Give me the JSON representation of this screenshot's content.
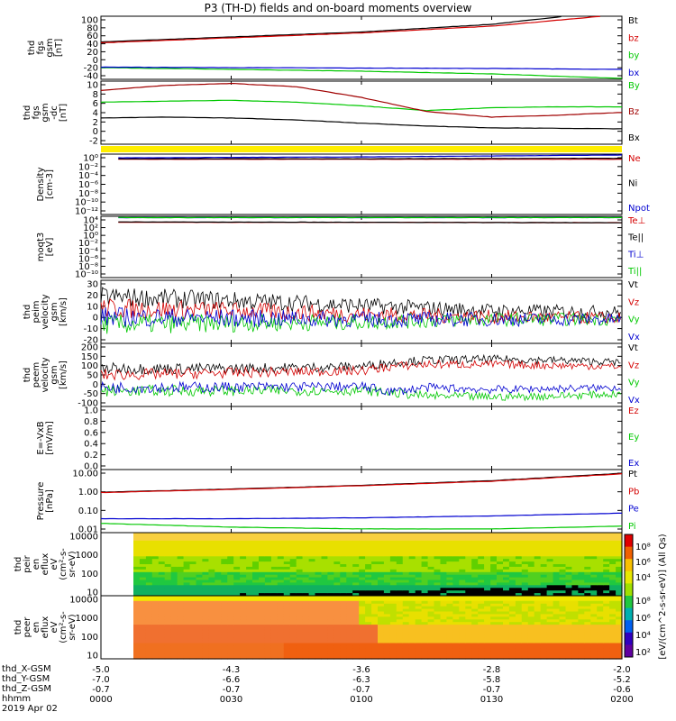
{
  "title": "P3 (TH-D) fields and on-board moments overview",
  "colors": {
    "black": "#000000",
    "red": "#d40000",
    "green": "#00c800",
    "blue": "#0000d0",
    "yellow": "#ffee00",
    "darkred": "#a00000"
  },
  "chart_data": [
    {
      "id": "fgs_gsm",
      "type": "line",
      "ylabel": [
        "thd",
        "fgs",
        "gsm",
        "[nT]"
      ],
      "yticks": [
        "100",
        "80",
        "60",
        "40",
        "20",
        "0",
        "-20",
        "-40"
      ],
      "ylim": [
        -40,
        100
      ],
      "series": [
        {
          "name": "Bt",
          "color": "#000000",
          "x": [
            0,
            30,
            60,
            90,
            118
          ],
          "y": [
            43,
            54,
            65,
            82,
            112
          ]
        },
        {
          "name": "bz",
          "color": "#d40000",
          "x": [
            0,
            30,
            60,
            90,
            120
          ],
          "y": [
            41,
            52,
            63,
            78,
            104
          ]
        },
        {
          "name": "by",
          "color": "#00c800",
          "x": [
            0,
            30,
            60,
            90,
            120
          ],
          "y": [
            -14,
            -18,
            -22,
            -28,
            -38
          ]
        },
        {
          "name": "bx",
          "color": "#0000d0",
          "x": [
            0,
            30,
            60,
            90,
            120
          ],
          "y": [
            -13,
            -14,
            -15,
            -16,
            -18
          ]
        }
      ]
    },
    {
      "id": "fgs_gsm_dc",
      "type": "line",
      "ylabel": [
        "thd",
        "fgs",
        "gsm",
        "-dc",
        "[nT]"
      ],
      "yticks": [
        "10",
        "8",
        "6",
        "4",
        "2",
        "0",
        "-2"
      ],
      "ylim": [
        -3,
        10.5
      ],
      "series": [
        {
          "name": "By",
          "color": "#00c800",
          "x": [
            0,
            15,
            30,
            45,
            60,
            75,
            90,
            105,
            120
          ],
          "y": [
            6,
            6.2,
            6.4,
            6,
            5.2,
            4.2,
            4.8,
            5,
            5
          ]
        },
        {
          "name": "Bz",
          "color": "#a00000",
          "x": [
            0,
            15,
            30,
            45,
            60,
            75,
            90,
            105,
            120
          ],
          "y": [
            8.5,
            9.6,
            10,
            9.3,
            7,
            4,
            2.8,
            3.2,
            3.8
          ]
        },
        {
          "name": "Bx",
          "color": "#000000",
          "x": [
            0,
            15,
            30,
            45,
            60,
            75,
            90,
            105,
            120
          ],
          "y": [
            2.6,
            2.8,
            2.6,
            2.2,
            1.5,
            0.9,
            0.5,
            0.4,
            0.3
          ]
        }
      ]
    },
    {
      "id": "density",
      "type": "line",
      "log": true,
      "ylabel": [
        "Density",
        "[cm-3]"
      ],
      "yticks": [
        "10⁰",
        "10⁻²",
        "10⁻⁴",
        "10⁻⁶",
        "10⁻⁸",
        "10⁻¹⁰",
        "10⁻¹²"
      ],
      "ylim": [
        -12,
        1
      ],
      "series": [
        {
          "name": "Ne",
          "color": "#d40000",
          "x": [
            4,
            60,
            120
          ],
          "y": [
            -0.1,
            -0.1,
            -0.1
          ]
        },
        {
          "name": "Ni",
          "color": "#000000",
          "x": [
            4,
            60,
            120
          ],
          "y": [
            0,
            0,
            0.1
          ]
        },
        {
          "name": "Npot",
          "color": "#0000d0",
          "x": [
            4,
            60,
            120
          ],
          "y": [
            0.2,
            0.4,
            0.8
          ]
        }
      ]
    },
    {
      "id": "moqt",
      "type": "line",
      "log": true,
      "ylabel": [
        "moqt3",
        "[eV]"
      ],
      "yticks": [
        "10⁴",
        "10²",
        "10⁰",
        "10⁻²",
        "10⁻⁴",
        "10⁻⁶",
        "10⁻⁸",
        "10⁻¹⁰"
      ],
      "ylim": [
        -10,
        4.3
      ],
      "series": [
        {
          "name": "Te⊥",
          "color": "#d40000",
          "x": [
            4,
            60,
            120
          ],
          "y": [
            2.9,
            2.9,
            2.8
          ]
        },
        {
          "name": "Te||",
          "color": "#000000",
          "x": [
            4,
            60,
            120
          ],
          "y": [
            3,
            2.9,
            2.8
          ]
        },
        {
          "name": "Ti⊥",
          "color": "#0000d0",
          "x": [
            4,
            60,
            120
          ],
          "y": [
            4,
            4,
            4
          ]
        },
        {
          "name": "Ti||",
          "color": "#00c800",
          "x": [
            4,
            60,
            120
          ],
          "y": [
            4,
            4,
            4
          ]
        }
      ]
    },
    {
      "id": "peim_velocity",
      "type": "line",
      "ylabel": [
        "thd",
        "peim",
        "velocity",
        "gsm",
        "[km/s]"
      ],
      "yticks": [
        "30",
        "20",
        "10",
        "0",
        "-10",
        "-20"
      ],
      "ylim": [
        -20,
        30
      ],
      "series": [
        {
          "name": "Vt",
          "color": "#000000",
          "x": [
            0,
            30,
            60,
            90,
            120
          ],
          "y": [
            17,
            14,
            10,
            6,
            5
          ]
        },
        {
          "name": "Vz",
          "color": "#d40000",
          "x": [
            0,
            30,
            60,
            90,
            120
          ],
          "y": [
            8,
            6,
            3,
            1,
            0
          ]
        },
        {
          "name": "Vy",
          "color": "#00c800",
          "x": [
            0,
            30,
            60,
            90,
            120
          ],
          "y": [
            -5,
            -4,
            -3,
            -1,
            -1
          ]
        },
        {
          "name": "Vx",
          "color": "#0000d0",
          "x": [
            0,
            30,
            60,
            90,
            120
          ],
          "y": [
            1,
            0,
            -1,
            -1,
            -1
          ]
        }
      ]
    },
    {
      "id": "peem_velocity",
      "type": "line",
      "ylabel": [
        "thd",
        "peem",
        "velocity",
        "gsm",
        "[km/s]"
      ],
      "yticks": [
        "200",
        "150",
        "100",
        "50",
        "0",
        "-50",
        "-100"
      ],
      "ylim": [
        -100,
        200
      ],
      "series": [
        {
          "name": "Vt",
          "color": "#000000",
          "x": [
            0,
            30,
            60,
            67,
            75,
            90,
            105,
            120
          ],
          "y": [
            80,
            80,
            90,
            110,
            120,
            125,
            120,
            110
          ]
        },
        {
          "name": "Vz",
          "color": "#d40000",
          "x": [
            0,
            30,
            60,
            67,
            75,
            90,
            105,
            120
          ],
          "y": [
            50,
            60,
            70,
            90,
            100,
            100,
            95,
            90
          ]
        },
        {
          "name": "Vy",
          "color": "#00c800",
          "x": [
            0,
            30,
            60,
            67,
            75,
            90,
            105,
            120
          ],
          "y": [
            -25,
            -25,
            -25,
            -35,
            -50,
            -55,
            -50,
            -40
          ]
        },
        {
          "name": "Vx",
          "color": "#0000d0",
          "x": [
            0,
            30,
            60,
            67,
            75,
            90,
            105,
            120
          ],
          "y": [
            -10,
            -8,
            -5,
            -30,
            -10,
            -20,
            -15,
            -10
          ]
        }
      ]
    },
    {
      "id": "efield",
      "type": "line",
      "ylabel": [
        "E=-VxB",
        "[mV/m]"
      ],
      "yticks": [
        "1.0",
        "0.8",
        "0.6",
        "0.4",
        "0.2",
        "0.0"
      ],
      "ylim": [
        0,
        1
      ],
      "series": [
        {
          "name": "Ez",
          "color": "#d40000",
          "x": [],
          "y": []
        },
        {
          "name": "Ey",
          "color": "#00c800",
          "x": [],
          "y": []
        },
        {
          "name": "Ex",
          "color": "#0000d0",
          "x": [],
          "y": []
        }
      ]
    },
    {
      "id": "pressure",
      "type": "line",
      "log": true,
      "ylabel": [
        "Pressure",
        "[nPa]"
      ],
      "yticks": [
        "10.00",
        "1.00",
        "0.10",
        "0.01"
      ],
      "ylim": [
        -2.25,
        1.15
      ],
      "series": [
        {
          "name": "Pt",
          "color": "#000000",
          "x": [
            0,
            30,
            60,
            90,
            120
          ],
          "y": [
            -0.07,
            0.1,
            0.3,
            0.55,
            0.95
          ]
        },
        {
          "name": "Pb",
          "color": "#d40000",
          "x": [
            0,
            30,
            60,
            90,
            120
          ],
          "y": [
            -0.09,
            0.08,
            0.28,
            0.52,
            0.92
          ]
        },
        {
          "name": "Pe",
          "color": "#0000d0",
          "x": [
            0,
            30,
            60,
            90,
            120
          ],
          "y": [
            -1.5,
            -1.5,
            -1.45,
            -1.35,
            -1.2
          ]
        },
        {
          "name": "Pi",
          "color": "#00c800",
          "x": [
            0,
            30,
            60,
            90,
            120
          ],
          "y": [
            -1.75,
            -1.95,
            -2.05,
            -2.05,
            -1.9
          ]
        }
      ]
    },
    {
      "id": "peir_flux",
      "type": "heatmap",
      "ylabel": [
        "thd",
        "peir",
        "en",
        "eflux",
        "eV",
        "(cm²-s-",
        "sr-eV)"
      ],
      "yticks": [
        "10000",
        "1000",
        "100",
        "10"
      ],
      "ylim": [
        5,
        20000
      ]
    },
    {
      "id": "peer_flux",
      "type": "heatmap",
      "ylabel": [
        "thd",
        "peer",
        "en",
        "eflux",
        "eV",
        "(cm²-s-",
        "sr-eV)"
      ],
      "yticks": [
        "10000",
        "1000",
        "100",
        "10"
      ],
      "ylim": [
        7,
        20000
      ]
    }
  ],
  "colorbar": {
    "label": "[eV/(cm^2-s-sr-eV)] (All Qs)",
    "ticks_top": [
      "10⁸",
      "10⁶",
      "10⁴"
    ],
    "ticks_bottom": [
      "10⁸",
      "10⁶",
      "10⁴",
      "10²"
    ]
  },
  "x_axis": {
    "tick_minutes": [
      0,
      30,
      60,
      90,
      120
    ],
    "rows": [
      {
        "label": "thd_X-GSM",
        "values": [
          "-5.0",
          "-4.3",
          "-3.6",
          "-2.8",
          "-2.0"
        ]
      },
      {
        "label": "thd_Y-GSM",
        "values": [
          "-7.0",
          "-6.6",
          "-6.3",
          "-5.8",
          "-5.2"
        ]
      },
      {
        "label": "thd_Z-GSM",
        "values": [
          "-0.7",
          "-0.7",
          "-0.7",
          "-0.7",
          "-0.6"
        ]
      },
      {
        "label": "hhmm",
        "values": [
          "0000",
          "0030",
          "0100",
          "0130",
          "0200"
        ]
      }
    ],
    "date": "2019 Apr 02"
  }
}
